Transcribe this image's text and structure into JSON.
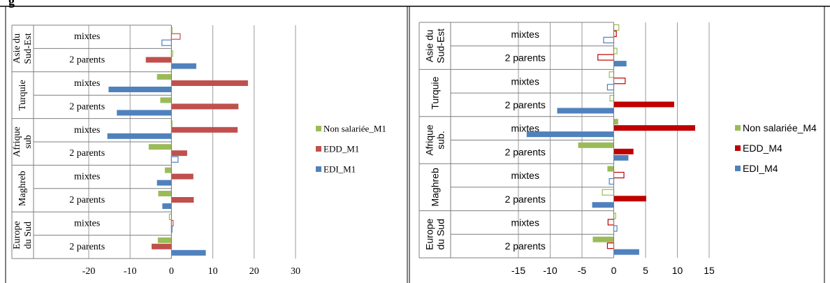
{
  "figure_label": "g",
  "chart_data": [
    {
      "type": "bar",
      "orientation": "horizontal",
      "grid": true,
      "legend_position": "right",
      "xlim": [
        -20,
        30
      ],
      "xticks": [
        -20,
        -10,
        0,
        10,
        20,
        30
      ],
      "groups": [
        {
          "label": "Asie du Sud-Est",
          "lines": [
            "Asie du",
            "Sud-Est"
          ]
        },
        {
          "label": "Turquie",
          "lines": [
            "Turquie"
          ]
        },
        {
          "label": "Afrique sub",
          "lines": [
            "Afrique",
            "sub"
          ]
        },
        {
          "label": "Maghreb",
          "lines": [
            "Maghreb"
          ]
        },
        {
          "label": "Europe du Sud",
          "lines": [
            "Europe",
            "du Sud"
          ]
        }
      ],
      "categories": [
        "Asie du Sud-Est / mixtes",
        "Asie du Sud-Est / 2 parents",
        "Turquie / mixtes",
        "Turquie / 2 parents",
        "Afrique sub / mixtes",
        "Afrique sub / 2 parents",
        "Maghreb / mixtes",
        "Maghreb / 2 parents",
        "Europe du Sud / mixtes",
        "Europe du Sud / 2 parents"
      ],
      "subcategory_labels": [
        "mixtes",
        "2 parents",
        "mixtes",
        "2 parents",
        "mixtes",
        "2 parents",
        "mixtes",
        "2 parents",
        "mixtes",
        "2 parents"
      ],
      "series": [
        {
          "name": "Non salariée_M1",
          "color": "#9bbb59",
          "values": [
            0.0,
            0.3,
            -3.5,
            -2.7,
            0.0,
            -5.5,
            -1.6,
            -3.2,
            -0.5,
            -3.3
          ],
          "significant": [
            false,
            false,
            true,
            true,
            false,
            true,
            true,
            true,
            false,
            true
          ]
        },
        {
          "name": "EDD_M1",
          "color": "#c0504d",
          "values": [
            2.1,
            -6.2,
            18.5,
            16.2,
            16.0,
            3.8,
            5.3,
            5.4,
            0.4,
            -4.8
          ],
          "significant": [
            false,
            true,
            true,
            true,
            true,
            true,
            true,
            true,
            false,
            true
          ]
        },
        {
          "name": "EDI_M1",
          "color": "#4f81bd",
          "values": [
            -2.3,
            6.0,
            -15.2,
            -13.2,
            -15.5,
            1.6,
            -3.5,
            -2.2,
            0.0,
            8.3
          ],
          "significant": [
            false,
            true,
            true,
            true,
            true,
            false,
            true,
            true,
            false,
            true
          ]
        }
      ]
    },
    {
      "type": "bar",
      "orientation": "horizontal",
      "grid": true,
      "legend_position": "right",
      "xlim": [
        -15,
        15
      ],
      "xticks": [
        -15,
        -10,
        -5,
        0,
        5,
        10,
        15
      ],
      "groups": [
        {
          "label": "Asie du Sud-Est",
          "lines": [
            "Asie du",
            "Sud-Est"
          ]
        },
        {
          "label": "Turquie",
          "lines": [
            "Turquie"
          ]
        },
        {
          "label": "Afrique sub.",
          "lines": [
            "Afrique",
            "sub."
          ]
        },
        {
          "label": "Maghreb",
          "lines": [
            "Maghreb"
          ]
        },
        {
          "label": "Europe du Sud",
          "lines": [
            "Europe",
            "du Sud"
          ]
        }
      ],
      "categories": [
        "Asie du Sud-Est / mixtes",
        "Asie du Sud-Est / 2 parents",
        "Turquie / mixtes",
        "Turquie / 2 parents",
        "Afrique sub. / mixtes",
        "Afrique sub. / 2 parents",
        "Maghreb / mixtes",
        "Maghreb / 2 parents",
        "Europe du Sud / mixtes",
        "Europe du Sud / 2 parents"
      ],
      "subcategory_labels": [
        "mixtes",
        "2 parents",
        "mixtes",
        "2 parents",
        "mixtes",
        "2 parents",
        "mixtes",
        "2 parents",
        "mixtes",
        "2 parents"
      ],
      "series": [
        {
          "name": "Non salariée_M4",
          "color": "#9bbb59",
          "values": [
            0.8,
            0.5,
            -0.7,
            -0.6,
            0.7,
            -5.6,
            -1.0,
            -1.8,
            0.3,
            -3.3
          ],
          "significant": [
            false,
            false,
            false,
            false,
            true,
            true,
            true,
            false,
            false,
            true
          ]
        },
        {
          "name": "EDD_M4",
          "color": "#c00000",
          "values": [
            0.4,
            -2.5,
            1.8,
            9.5,
            12.8,
            3.1,
            1.6,
            5.1,
            -0.9,
            -1.0
          ],
          "significant": [
            false,
            false,
            false,
            true,
            true,
            true,
            false,
            true,
            false,
            false
          ]
        },
        {
          "name": "EDI_M4",
          "color": "#4f81bd",
          "values": [
            -1.6,
            2.0,
            -1.0,
            -8.9,
            -13.7,
            2.3,
            -0.7,
            -3.4,
            0.5,
            4.0
          ],
          "significant": [
            false,
            true,
            false,
            true,
            true,
            true,
            false,
            true,
            false,
            true
          ]
        }
      ]
    }
  ]
}
